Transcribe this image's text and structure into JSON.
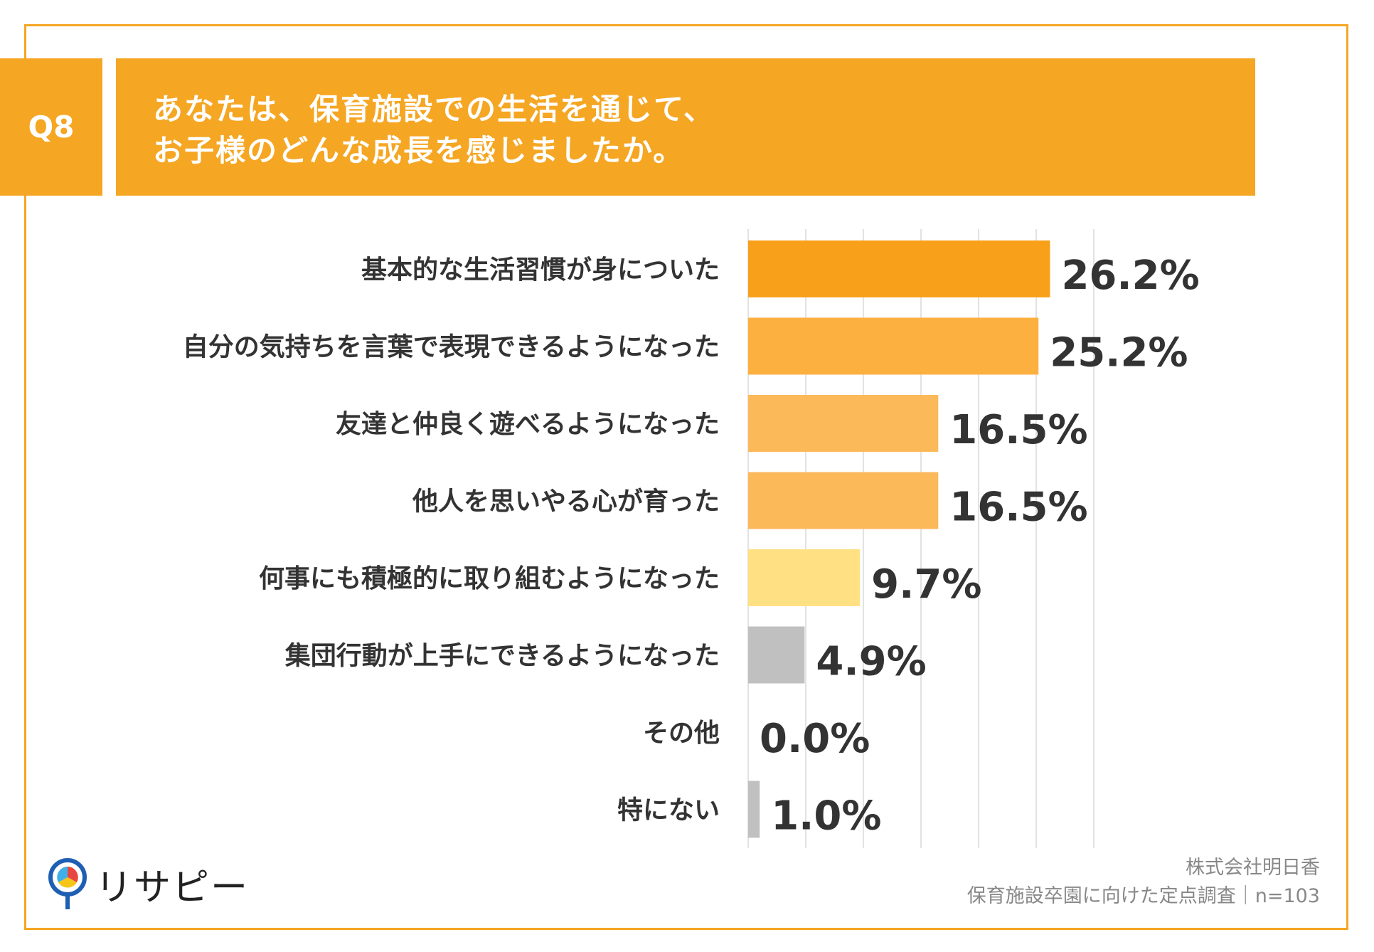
{
  "header": {
    "question_id": "Q8",
    "title_line_1": "あなたは、保育施設での生活を通じて、",
    "title_line_2": "お子様のどんな成長を感じましたか。"
  },
  "chart_data": {
    "type": "bar",
    "orientation": "horizontal",
    "title": "あなたは、保育施設での生活を通じて、お子様のどんな成長を感じましたか。",
    "xlabel": "",
    "ylabel": "",
    "xlim": [
      0,
      30
    ],
    "grid": true,
    "categories": [
      "基本的な生活習慣が身についた",
      "自分の気持ちを言葉で表現できるようになった",
      "友達と仲良く遊べるようになった",
      "他人を思いやる心が育った",
      "何事にも積極的に取り組むようになった",
      "集団行動が上手にできるようになった",
      "その他",
      "特にない"
    ],
    "values": [
      26.2,
      25.2,
      16.5,
      16.5,
      9.7,
      4.9,
      0.0,
      1.0
    ],
    "value_labels": [
      "26.2%",
      "25.2%",
      "16.5%",
      "16.5%",
      "9.7%",
      "4.9%",
      "0.0%",
      "1.0%"
    ],
    "colors": [
      "#f9a01b",
      "#fbb040",
      "#fcb95a",
      "#fcb95a",
      "#ffe083",
      "#c0c0c0",
      "#c0c0c0",
      "#c0c0c0"
    ]
  },
  "footer": {
    "logo_text": "リサピー",
    "source_line_1": "株式会社明日香",
    "source_line_2": "保育施設卒園に向けた定点調査｜n=103"
  },
  "theme": {
    "accent": "#f5a623",
    "grid": "#d9d9d9",
    "text": "#333333"
  }
}
